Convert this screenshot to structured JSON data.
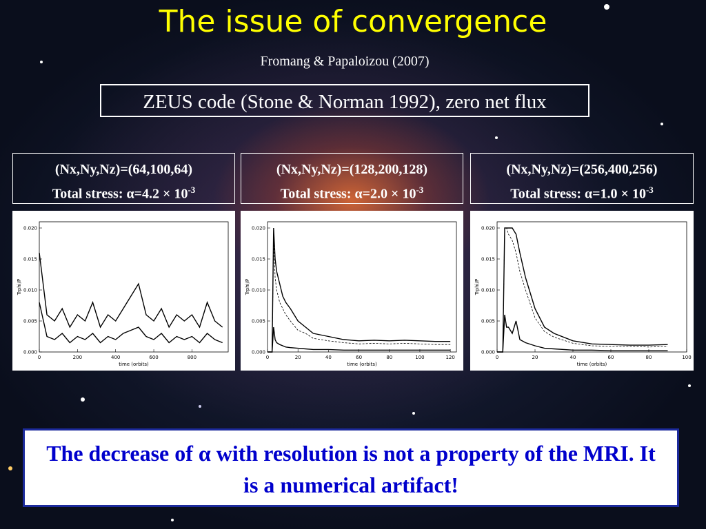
{
  "title": "The issue of convergence",
  "subtitle": "Fromang & Papaloizou (2007)",
  "code_box": "ZEUS code (Stone & Norman 1992), zero net flux",
  "panels": [
    {
      "resolution": "(Nx,Ny,Nz)=(64,100,64)",
      "stress": "Total stress: α=4.2 × 10",
      "exponent": "-3"
    },
    {
      "resolution": "(Nx,Ny,Nz)=(128,200,128)",
      "stress": "Total stress: α=2.0 × 10",
      "exponent": "-3"
    },
    {
      "resolution": "(Nx,Ny,Nz)=(256,400,256)",
      "stress": "Total stress: α=1.0 × 10",
      "exponent": "-3"
    }
  ],
  "chart_data": [
    {
      "type": "line",
      "x_label": "time (orbits)",
      "y_label": "Trphi/P",
      "xlim": [
        0,
        990
      ],
      "xticks": [
        0,
        200,
        400,
        600,
        800
      ],
      "ylim": [
        0,
        0.021
      ],
      "yticks": [
        {
          "value": 0,
          "label": "0.000"
        },
        {
          "value": 0.005,
          "label": "0.005"
        },
        {
          "value": 0.01,
          "label": "0.010"
        },
        {
          "value": 0.015,
          "label": "0.015"
        },
        {
          "value": 0.02,
          "label": "0.020"
        }
      ],
      "x": [
        0,
        40,
        80,
        120,
        160,
        200,
        240,
        280,
        320,
        360,
        400,
        440,
        480,
        520,
        560,
        600,
        640,
        680,
        720,
        760,
        800,
        840,
        880,
        920,
        960
      ],
      "series": [
        {
          "color": "#000000",
          "dashed": false,
          "values": [
            0.016,
            0.006,
            0.005,
            0.007,
            0.004,
            0.006,
            0.005,
            0.008,
            0.004,
            0.006,
            0.005,
            0.007,
            0.009,
            0.011,
            0.006,
            0.005,
            0.007,
            0.004,
            0.006,
            0.005,
            0.006,
            0.004,
            0.008,
            0.005,
            0.004
          ]
        },
        {
          "color": "#000000",
          "dashed": false,
          "values": [
            0.008,
            0.0025,
            0.002,
            0.003,
            0.0015,
            0.0025,
            0.002,
            0.003,
            0.0015,
            0.0025,
            0.002,
            0.003,
            0.0035,
            0.004,
            0.0025,
            0.002,
            0.003,
            0.0015,
            0.0025,
            0.002,
            0.0025,
            0.0015,
            0.003,
            0.002,
            0.0015
          ]
        }
      ]
    },
    {
      "type": "line",
      "x_label": "time (orbits)",
      "y_label": "Trphi/P",
      "xlim": [
        0,
        124
      ],
      "xticks": [
        0,
        20,
        40,
        60,
        80,
        100,
        120
      ],
      "ylim": [
        0,
        0.021
      ],
      "yticks": [
        {
          "value": 0,
          "label": "0.000"
        },
        {
          "value": 0.005,
          "label": "0.005"
        },
        {
          "value": 0.01,
          "label": "0.010"
        },
        {
          "value": 0.015,
          "label": "0.015"
        },
        {
          "value": 0.02,
          "label": "0.020"
        }
      ],
      "x": [
        0,
        3,
        4,
        5,
        6,
        8,
        10,
        12,
        15,
        20,
        25,
        30,
        40,
        50,
        60,
        70,
        80,
        90,
        100,
        110,
        120
      ],
      "series": [
        {
          "color": "#000000",
          "dashed": false,
          "values": [
            0,
            0,
            0.02,
            0.015,
            0.013,
            0.011,
            0.009,
            0.008,
            0.007,
            0.005,
            0.004,
            0.003,
            0.0025,
            0.002,
            0.0018,
            0.0019,
            0.0018,
            0.0019,
            0.0018,
            0.0017,
            0.0017
          ]
        },
        {
          "color": "#000000",
          "dashed": true,
          "values": [
            0,
            0,
            0.018,
            0.012,
            0.01,
            0.008,
            0.007,
            0.006,
            0.005,
            0.0035,
            0.003,
            0.0022,
            0.0018,
            0.0015,
            0.0013,
            0.0014,
            0.0013,
            0.0014,
            0.0013,
            0.0012,
            0.0012
          ]
        },
        {
          "color": "#000000",
          "dashed": false,
          "values": [
            0,
            0,
            0.004,
            0.002,
            0.0015,
            0.0012,
            0.001,
            0.0008,
            0.0007,
            0.0006,
            0.0005,
            0.0004,
            0.0004,
            0.0003,
            0.0003,
            0.0003,
            0.0003,
            0.0003,
            0.0003,
            0.0003,
            0.0003
          ]
        }
      ]
    },
    {
      "type": "line",
      "x_label": "time (orbits)",
      "y_label": "Trphi/P",
      "xlim": [
        0,
        100
      ],
      "xticks": [
        0,
        20,
        40,
        60,
        80,
        100
      ],
      "ylim": [
        0,
        0.021
      ],
      "yticks": [
        {
          "value": 0,
          "label": "0.000"
        },
        {
          "value": 0.005,
          "label": "0.005"
        },
        {
          "value": 0.01,
          "label": "0.010"
        },
        {
          "value": 0.015,
          "label": "0.015"
        },
        {
          "value": 0.02,
          "label": "0.020"
        }
      ],
      "x": [
        0,
        3,
        4,
        5,
        6,
        8,
        10,
        12,
        15,
        20,
        25,
        30,
        40,
        50,
        60,
        70,
        80,
        90
      ],
      "series": [
        {
          "color": "#000000",
          "dashed": false,
          "values": [
            0,
            0,
            0.02,
            0.02,
            0.02,
            0.02,
            0.019,
            0.016,
            0.012,
            0.007,
            0.004,
            0.003,
            0.0018,
            0.0013,
            0.0012,
            0.0011,
            0.0011,
            0.0012
          ]
        },
        {
          "color": "#000000",
          "dashed": true,
          "values": [
            0,
            0,
            0.02,
            0.02,
            0.019,
            0.018,
            0.016,
            0.013,
            0.01,
            0.0055,
            0.0033,
            0.0024,
            0.0014,
            0.001,
            0.0009,
            0.0009,
            0.0008,
            0.0009
          ]
        },
        {
          "color": "#000000",
          "dashed": false,
          "values": [
            0,
            0,
            0.006,
            0.004,
            0.004,
            0.003,
            0.005,
            0.002,
            0.0015,
            0.001,
            0.0006,
            0.0005,
            0.0003,
            0.0003,
            0.0002,
            0.0002,
            0.0002,
            0.0002
          ]
        }
      ]
    }
  ],
  "conclusion": "The decrease of α with resolution is not a property of the MRI. It is a numerical artifact!"
}
